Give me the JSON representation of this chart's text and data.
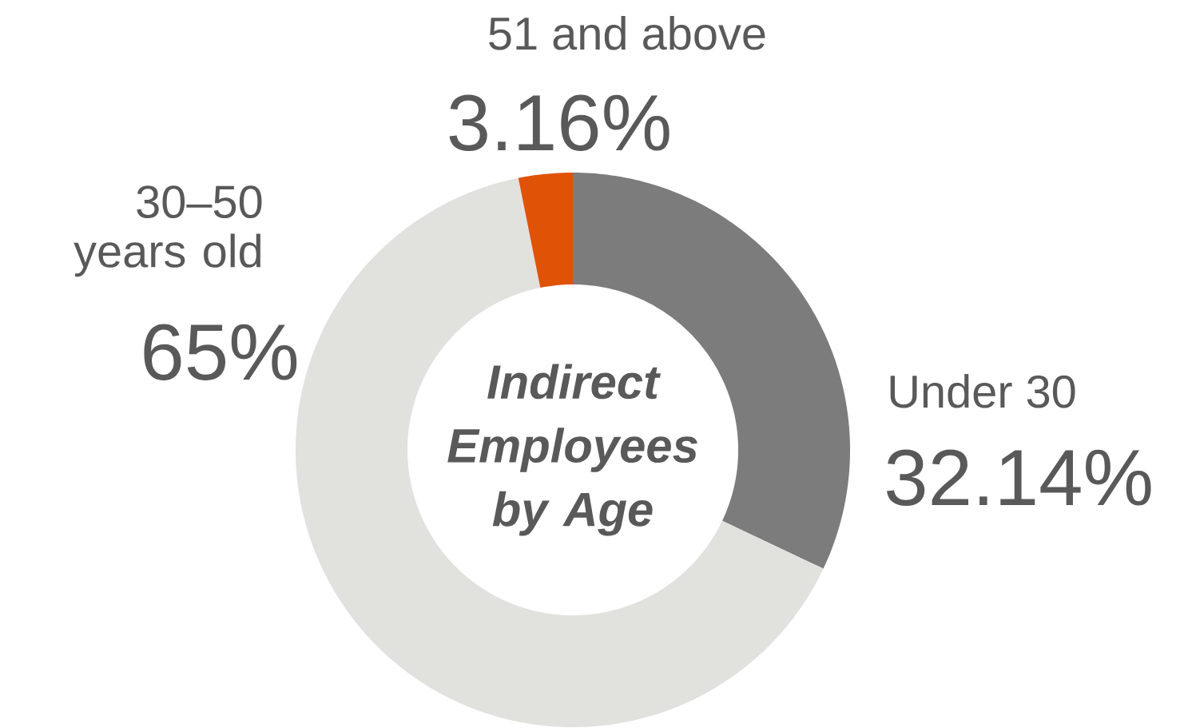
{
  "chart_data": {
    "type": "donut",
    "title": "Indirect Employees by Age",
    "categories": [
      "Under 30",
      "30–50 years old",
      "51 and above"
    ],
    "values": [
      32.14,
      65,
      3.16
    ],
    "colors": [
      "#7b7c7b",
      "#e1e1dd",
      "#e05206"
    ],
    "value_labels": [
      "32.14%",
      "65%",
      "3.16%"
    ]
  }
}
